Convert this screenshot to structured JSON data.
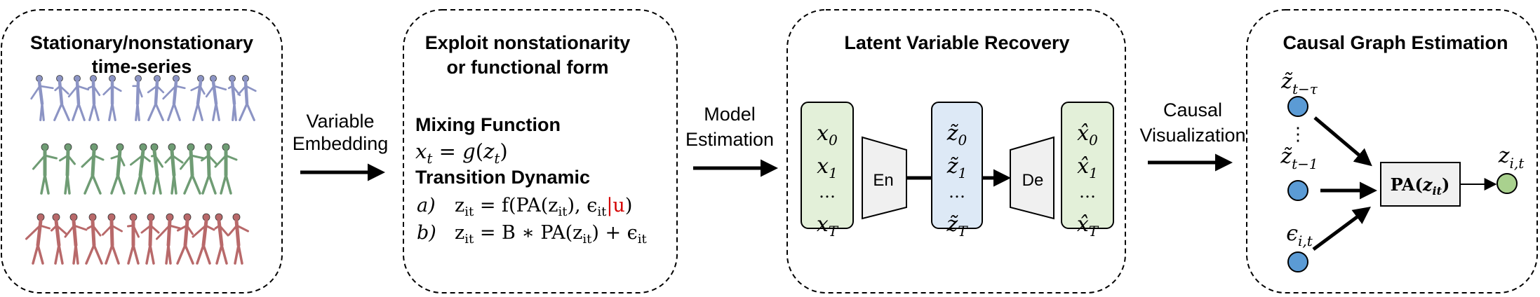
{
  "panel1": {
    "title_line1": "Stationary/nonstationary",
    "title_line2": "time-series",
    "figure_colors": [
      "#8c94c4",
      "#6f9c74",
      "#b8696a"
    ]
  },
  "arrow1": {
    "line1": "Variable",
    "line2": "Embedding"
  },
  "panel2": {
    "title_line1": "Exploit nonstationarity",
    "title_line2": "or functional form",
    "mixing_heading": "Mixing Function",
    "mixing_eq": "x_t = g(z_t)",
    "transition_heading": "Transition Dynamic",
    "eq_a_label": "a)",
    "eq_a_main": "z_it = f(PA(z_it), ϵ_it",
    "eq_a_bar": "|",
    "eq_a_u": "u",
    "eq_a_close": ")",
    "eq_b_label": "b)",
    "eq_b": "z_it = B ∗ PA(z_it) + ϵ_it",
    "accent": "#d40000"
  },
  "arrow2": {
    "line1": "Model",
    "line2": "Estimation"
  },
  "panel3": {
    "title": "Latent Variable Recovery",
    "input": [
      "x0",
      "x1",
      "…",
      "xT"
    ],
    "encoder": "En",
    "latent": [
      "z̃0",
      "z̃1",
      "…",
      "z̃T"
    ],
    "decoder": "De",
    "output": [
      "x̂0",
      "x̂1",
      "…",
      "x̂T"
    ],
    "colors": {
      "green": "#e3f0d9",
      "blue": "#dde9f6",
      "trap": "#f0f0f0"
    }
  },
  "arrow3": {
    "line1": "Causal",
    "line2": "Visualization"
  },
  "panel4": {
    "title": "Causal Graph Estimation",
    "node1": "z̃t−τ",
    "dots": "⋮",
    "node2": "z̃t−1",
    "node3": "ϵi,t",
    "box": "PA(zit)",
    "target": "zi,t",
    "colors": {
      "node": "#5b9bd5",
      "target": "#a9d18e"
    }
  }
}
